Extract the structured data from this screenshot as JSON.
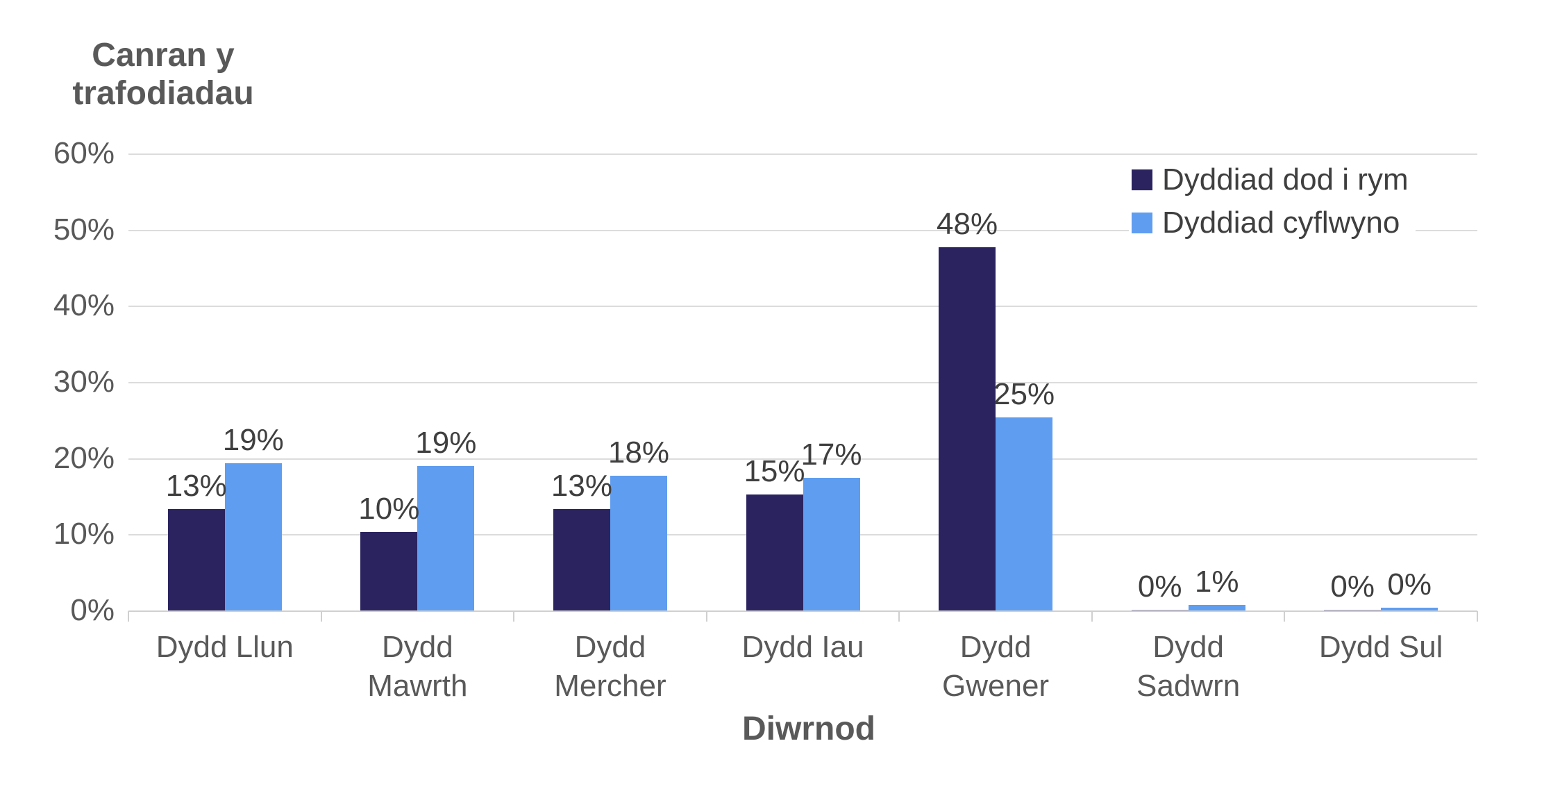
{
  "chart_data": {
    "type": "bar",
    "ylabel": "Canran y trafodiadau",
    "xlabel": "Diwrnod",
    "categories": [
      "Dydd Llun",
      "Dydd Mawrth",
      "Dydd Mercher",
      "Dydd Iau",
      "Dydd Gwener",
      "Dydd Sadwrn",
      "Dydd Sul"
    ],
    "series": [
      {
        "name": "Dyddiad dod i rym",
        "color": "#2A2360",
        "values": [
          13,
          10,
          13,
          15,
          48,
          0,
          0
        ],
        "bar_heights_pct": [
          13.4,
          10.4,
          13.4,
          15.3,
          47.8,
          0.15,
          0.15
        ]
      },
      {
        "name": "Dyddiad cyflwyno",
        "color": "#5F9DF0",
        "values": [
          19,
          19,
          18,
          17,
          25,
          1,
          0
        ],
        "bar_heights_pct": [
          19.4,
          19.1,
          17.8,
          17.5,
          25.4,
          0.8,
          0.45
        ]
      }
    ],
    "data_label_suffix": "%",
    "y_ticks": [
      "0%",
      "10%",
      "20%",
      "30%",
      "40%",
      "50%",
      "60%"
    ],
    "ylim": [
      0,
      60
    ],
    "grid": true,
    "legend_position": "top-right",
    "colors": {
      "grid": "#DCDCDC",
      "axis": "#D0D0D0",
      "tick_text": "#595959",
      "data_label_text": "#3F3F3F",
      "title_text": "#595959",
      "legend_text": "#3F3F3F",
      "background": "#FFFFFF"
    }
  }
}
